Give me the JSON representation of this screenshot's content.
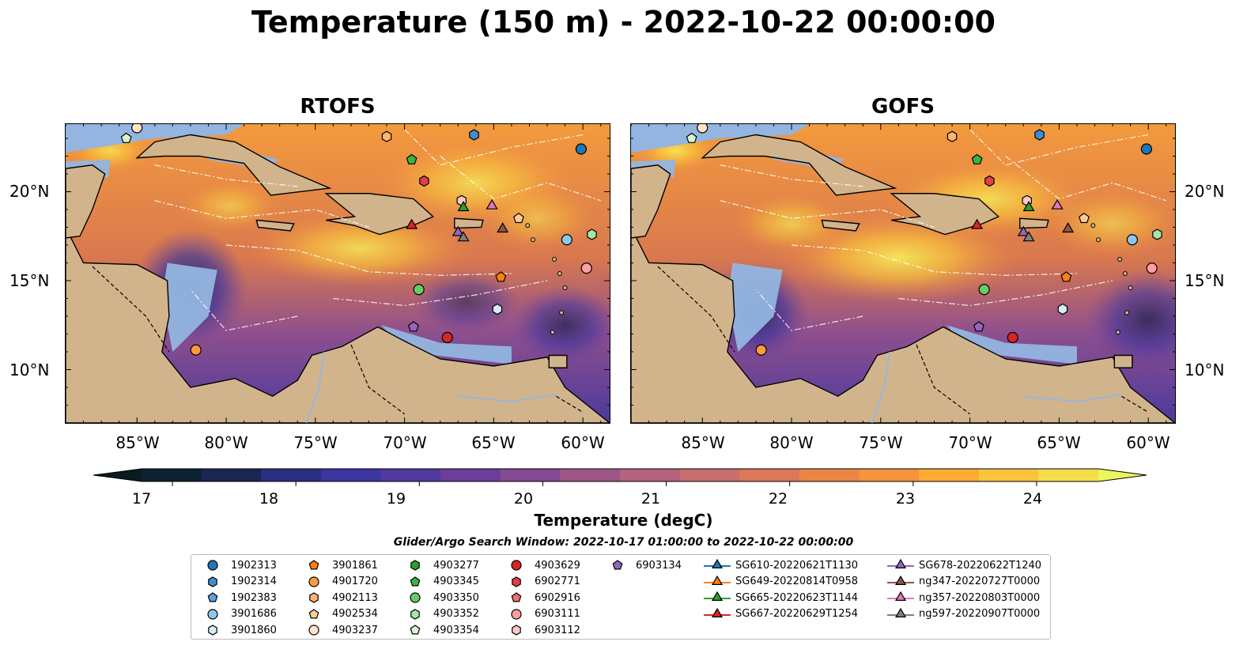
{
  "title": "Temperature (150 m) - 2022-10-22 00:00:00",
  "panels": [
    {
      "title": "RTOFS"
    },
    {
      "title": "GOFS"
    }
  ],
  "axes": {
    "lat_labels": [
      "20°N",
      "15°N",
      "10°N"
    ],
    "lon_labels": [
      "85°W",
      "80°W",
      "75°W",
      "70°W",
      "65°W",
      "60°W"
    ]
  },
  "colorbar": {
    "label": "Temperature (degC)",
    "ticks": [
      "17",
      "18",
      "19",
      "20",
      "21",
      "22",
      "23",
      "24"
    ],
    "min": 16.75,
    "max": 24.5,
    "step": 0.5,
    "colors": [
      "#0b2233",
      "#1b2552",
      "#2b2f82",
      "#3b35a0",
      "#52399f",
      "#6b3f98",
      "#844a92",
      "#9e5688",
      "#b46280",
      "#c86e6c",
      "#db7858",
      "#ec8446",
      "#f7933c",
      "#fbab34",
      "#f9c43c",
      "#f3de4a"
    ],
    "over_color": "#ebf55c",
    "under_color": "#081a22"
  },
  "search_window": "Glider/Argo Search Window: 2022-10-17 01:00:00 to 2022-10-22 00:00:00",
  "legend": [
    {
      "label": "1902313",
      "marker": "circle",
      "color": "#1f77b4"
    },
    {
      "label": "1902314",
      "marker": "hexagon",
      "color": "#3f8ed0"
    },
    {
      "label": "1902383",
      "marker": "pentagon",
      "color": "#5aa2e0"
    },
    {
      "label": "3901686",
      "marker": "circle",
      "color": "#8ec5ec"
    },
    {
      "label": "3901860",
      "marker": "hexagon",
      "color": "#d6ecf8"
    },
    {
      "label": "3901861",
      "marker": "pentagon",
      "color": "#ff7f0e"
    },
    {
      "label": "4901720",
      "marker": "circle",
      "color": "#ff9a3c"
    },
    {
      "label": "4902113",
      "marker": "hexagon",
      "color": "#ffb56e"
    },
    {
      "label": "4902534",
      "marker": "pentagon",
      "color": "#ffcc99"
    },
    {
      "label": "4903237",
      "marker": "circle",
      "color": "#ffe4c8"
    },
    {
      "label": "4903277",
      "marker": "hexagon",
      "color": "#2ca02c"
    },
    {
      "label": "4903345",
      "marker": "pentagon",
      "color": "#3cb43c"
    },
    {
      "label": "4903350",
      "marker": "circle",
      "color": "#66cc66"
    },
    {
      "label": "4903352",
      "marker": "hexagon",
      "color": "#a6e6a6"
    },
    {
      "label": "4903354",
      "marker": "pentagon",
      "color": "#d8f5d0"
    },
    {
      "label": "4903629",
      "marker": "circle",
      "color": "#d62728"
    },
    {
      "label": "6902771",
      "marker": "hexagon",
      "color": "#e0404a"
    },
    {
      "label": "6902916",
      "marker": "pentagon",
      "color": "#f07070"
    },
    {
      "label": "6903111",
      "marker": "circle",
      "color": "#ff9e9e"
    },
    {
      "label": "6903112",
      "marker": "hexagon",
      "color": "#ffc8c8"
    },
    {
      "label": "6903134",
      "marker": "pentagon",
      "color": "#9467bd"
    },
    {
      "label": "SG610-20220621T1130",
      "marker": "triangle",
      "color": "#1f77b4"
    },
    {
      "label": "SG649-20220814T0958",
      "marker": "triangle",
      "color": "#ff7f0e"
    },
    {
      "label": "SG665-20220623T1144",
      "marker": "triangle",
      "color": "#2ca02c"
    },
    {
      "label": "SG667-20220629T1254",
      "marker": "triangle",
      "color": "#d62728"
    },
    {
      "label": "SG678-20220622T1240",
      "marker": "triangle",
      "color": "#9467bd"
    },
    {
      "label": "ng347-20220727T0000",
      "marker": "triangle",
      "color": "#8c564b"
    },
    {
      "label": "ng357-20220803T0000",
      "marker": "triangle",
      "color": "#e377c2"
    },
    {
      "label": "ng597-20220907T0000",
      "marker": "triangle",
      "color": "#7f7f7f"
    }
  ],
  "markers": [
    {
      "id": "1902313",
      "lon": -60.1,
      "lat": 22.4
    },
    {
      "id": "1902314",
      "lon": -66.1,
      "lat": 23.2
    },
    {
      "id": "3901686",
      "lon": -60.9,
      "lat": 17.3
    },
    {
      "id": "3901860",
      "lon": -64.8,
      "lat": 13.4
    },
    {
      "id": "3901861",
      "lon": -64.6,
      "lat": 15.2
    },
    {
      "id": "4901720",
      "lon": -81.7,
      "lat": 11.1
    },
    {
      "id": "4902113",
      "lon": -71.0,
      "lat": 23.1
    },
    {
      "id": "4902534",
      "lon": -63.6,
      "lat": 18.5
    },
    {
      "id": "4903237",
      "lon": -85.0,
      "lat": 23.6
    },
    {
      "id": "4903345",
      "lon": -69.6,
      "lat": 21.8
    },
    {
      "id": "4903350",
      "lon": -69.2,
      "lat": 14.5
    },
    {
      "id": "4903352",
      "lon": -59.5,
      "lat": 17.6
    },
    {
      "id": "4903354",
      "lon": -85.6,
      "lat": 23.0
    },
    {
      "id": "4903629",
      "lon": -67.6,
      "lat": 11.8
    },
    {
      "id": "6902771",
      "lon": -68.9,
      "lat": 20.6
    },
    {
      "id": "6903111",
      "lon": -59.8,
      "lat": 15.7
    },
    {
      "id": "6903112",
      "lon": -66.8,
      "lat": 19.5
    },
    {
      "id": "6903134",
      "lon": -69.5,
      "lat": 12.4
    },
    {
      "id": "SG665-20220623T1144",
      "lon": -66.7,
      "lat": 19.1
    },
    {
      "id": "SG667-20220629T1254",
      "lon": -69.6,
      "lat": 18.1
    },
    {
      "id": "SG678-20220622T1240",
      "lon": -67.0,
      "lat": 17.7
    },
    {
      "id": "ng347-20220727T0000",
      "lon": -64.5,
      "lat": 17.9
    },
    {
      "id": "ng357-20220803T0000",
      "lon": -65.1,
      "lat": 19.2
    },
    {
      "id": "ng597-20220907T0000",
      "lon": -66.7,
      "lat": 17.4
    }
  ]
}
